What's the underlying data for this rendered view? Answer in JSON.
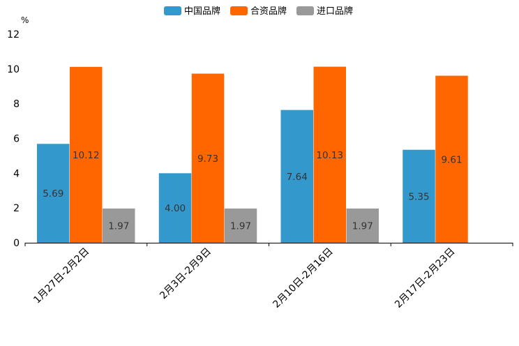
{
  "chart_data": {
    "type": "bar",
    "title": "",
    "xlabel": "",
    "ylabel": "%",
    "ylim": [
      0,
      12
    ],
    "yticks": [
      0,
      2,
      4,
      6,
      8,
      10,
      12
    ],
    "categories": [
      "1月27日-2月2日",
      "2月3日-2月9日",
      "2月10日-2月16日",
      "2月17日-2月23日"
    ],
    "series": [
      {
        "name": "中国品牌",
        "color": "#3399cc",
        "values": [
          5.69,
          4.0,
          7.64,
          5.35
        ],
        "labels": [
          "5.69",
          "4.00",
          "7.64",
          "5.35"
        ]
      },
      {
        "name": "合资品牌",
        "color": "#ff6600",
        "values": [
          10.12,
          9.73,
          10.13,
          9.61
        ],
        "labels": [
          "10.12",
          "9.73",
          "10.13",
          "9.61"
        ]
      },
      {
        "name": "进口品牌",
        "color": "#999999",
        "values": [
          1.97,
          1.97,
          1.97,
          null
        ],
        "labels": [
          "1.97",
          "1.97",
          "1.97",
          null
        ]
      }
    ],
    "legend_position": "top-center",
    "grid": false
  }
}
